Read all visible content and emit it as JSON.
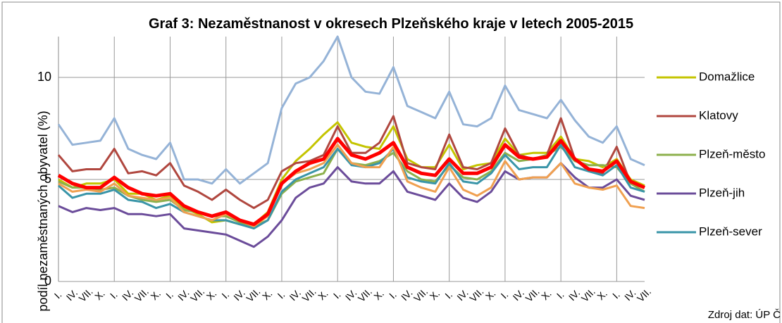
{
  "chart_data": {
    "type": "line",
    "title": "Graf 3: Nezaměstnanost v okresech Plzeňského kraje v letech 2005-2015",
    "y_label": "podíl nezaměstnaných obyvatel (%)",
    "source": "Zdroj dat: ÚP Č",
    "categories": [
      "I.",
      "IV.",
      "VII.",
      "X.",
      "I.",
      "IV.",
      "VII.",
      "X.",
      "I.",
      "IV.",
      "VII.",
      "X.",
      "I.",
      "IV.",
      "VII.",
      "X.",
      "I.",
      "IV.",
      "VII.",
      "X.",
      "I.",
      "IV.",
      "VII.",
      "X.",
      "I.",
      "IV.",
      "VII.",
      "X.",
      "I.",
      "IV.",
      "VII.",
      "X.",
      "I.",
      "IV.",
      "VII.",
      "X.",
      "I.",
      "IV.",
      "VII.",
      "X.",
      "I.",
      "IV.",
      "VII."
    ],
    "ylim": [
      0,
      12
    ],
    "yticks": [
      0,
      5,
      10
    ],
    "grid": true,
    "series": [
      {
        "color": "#95b3d7",
        "values": [
          7.7,
          6.7,
          6.8,
          6.9,
          8.0,
          6.5,
          6.2,
          6.0,
          6.8,
          5.0,
          5.0,
          4.8,
          5.5,
          4.8,
          5.3,
          5.8,
          8.5,
          9.7,
          10.0,
          10.8,
          12.0,
          10.0,
          9.3,
          9.2,
          10.5,
          8.6,
          8.3,
          8.0,
          9.3,
          7.7,
          7.6,
          8.0,
          9.6,
          8.4,
          8.2,
          8.0,
          8.9,
          7.9,
          7.1,
          6.8,
          7.6,
          6.0,
          5.7
        ]
      },
      {
        "name": "Domažlice",
        "color": "#c4c400",
        "values": [
          5.0,
          4.6,
          4.8,
          4.8,
          5.0,
          4.3,
          4.3,
          4.0,
          4.2,
          3.6,
          3.3,
          2.9,
          3.0,
          2.8,
          2.8,
          3.4,
          5.0,
          5.9,
          6.5,
          7.2,
          7.8,
          6.8,
          6.6,
          6.5,
          7.6,
          6.0,
          5.6,
          5.6,
          6.7,
          5.5,
          5.7,
          5.8,
          7.0,
          6.2,
          6.3,
          6.3,
          7.1,
          6.0,
          5.9,
          5.6,
          6.0,
          5.0,
          4.7
        ]
      },
      {
        "name": "Klatovy",
        "color": "#b0473f",
        "values": [
          6.2,
          5.4,
          5.5,
          5.5,
          6.5,
          5.3,
          5.4,
          5.2,
          5.8,
          4.7,
          4.4,
          4.0,
          4.5,
          4.0,
          3.6,
          4.0,
          5.4,
          5.8,
          5.9,
          6.2,
          7.6,
          6.3,
          6.3,
          6.8,
          8.1,
          5.8,
          5.6,
          5.5,
          7.2,
          5.6,
          5.5,
          5.8,
          7.5,
          6.2,
          6.0,
          6.2,
          8.0,
          6.0,
          5.4,
          5.3,
          6.6,
          4.8,
          4.6
        ]
      },
      {
        "name": "Plzeň-město",
        "color": "#8db04c",
        "values": [
          4.9,
          4.6,
          4.6,
          4.5,
          4.6,
          4.2,
          4.0,
          3.9,
          4.0,
          3.5,
          3.4,
          3.2,
          3.2,
          2.9,
          2.7,
          3.0,
          4.3,
          4.9,
          5.1,
          5.3,
          6.5,
          5.8,
          5.7,
          5.9,
          6.3,
          5.4,
          5.0,
          4.9,
          5.7,
          5.1,
          5.0,
          5.4,
          6.3,
          5.9,
          6.0,
          6.2,
          6.6,
          5.9,
          5.7,
          5.7,
          5.6,
          4.8,
          4.4
        ]
      },
      {
        "name": "Plzeň-jih",
        "color": "#6b4c9a",
        "values": [
          3.7,
          3.4,
          3.6,
          3.5,
          3.6,
          3.3,
          3.3,
          3.2,
          3.3,
          2.6,
          2.5,
          2.4,
          2.3,
          2.0,
          1.7,
          2.2,
          3.0,
          4.1,
          4.6,
          4.8,
          5.6,
          4.9,
          4.8,
          4.8,
          5.4,
          4.4,
          4.2,
          4.0,
          4.8,
          4.1,
          3.9,
          4.4,
          5.4,
          5.0,
          5.1,
          5.1,
          5.8,
          5.1,
          4.6,
          4.6,
          5.0,
          4.2,
          4.0
        ]
      },
      {
        "name": "Plzeň-sever",
        "color": "#3a95a8",
        "values": [
          4.7,
          4.1,
          4.3,
          4.3,
          4.5,
          4.0,
          3.9,
          3.6,
          3.8,
          3.4,
          3.2,
          3.0,
          3.0,
          2.8,
          2.6,
          3.0,
          4.4,
          5.0,
          5.3,
          5.6,
          6.5,
          5.7,
          5.6,
          5.8,
          6.5,
          5.1,
          4.9,
          4.8,
          5.8,
          4.9,
          4.8,
          5.3,
          6.2,
          5.5,
          5.6,
          5.6,
          6.7,
          5.6,
          5.4,
          5.2,
          5.7,
          4.6,
          4.4
        ]
      },
      {
        "color": "#f0a050",
        "values": [
          4.8,
          4.4,
          4.5,
          4.4,
          4.8,
          4.2,
          4.1,
          4.0,
          4.1,
          3.4,
          3.2,
          3.0,
          3.3,
          3.0,
          2.7,
          3.2,
          4.8,
          5.3,
          5.5,
          5.8,
          6.7,
          5.8,
          5.6,
          5.6,
          6.6,
          4.9,
          4.6,
          4.4,
          5.6,
          4.5,
          4.2,
          4.6,
          5.9,
          5.0,
          5.1,
          5.1,
          5.8,
          4.8,
          4.6,
          4.5,
          4.7,
          3.7,
          3.6
        ]
      },
      {
        "color": "#ff0000",
        "width": 5,
        "values": [
          5.2,
          4.8,
          4.6,
          4.6,
          5.1,
          4.6,
          4.3,
          4.2,
          4.3,
          3.7,
          3.4,
          3.2,
          3.4,
          3.0,
          2.8,
          3.3,
          4.8,
          5.4,
          5.8,
          6.0,
          7.0,
          6.2,
          6.0,
          6.3,
          6.8,
          5.6,
          5.3,
          5.2,
          6.0,
          5.3,
          5.3,
          5.6,
          6.7,
          6.1,
          6.0,
          6.1,
          6.9,
          6.0,
          5.5,
          5.4,
          5.9,
          4.9,
          4.6
        ]
      }
    ]
  }
}
